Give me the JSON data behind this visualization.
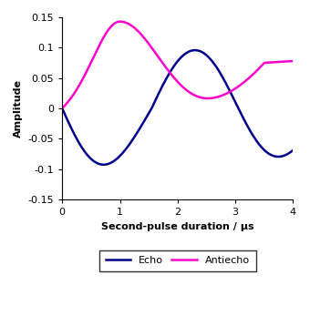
{
  "title": "",
  "xlabel": "Second-pulse duration / μs",
  "ylabel": "Amplitude",
  "xlim": [
    0,
    4
  ],
  "ylim": [
    -0.15,
    0.15
  ],
  "xticks": [
    0,
    1,
    2,
    3,
    4
  ],
  "yticks": [
    -0.15,
    -0.1,
    -0.05,
    0.0,
    0.05,
    0.1,
    0.15
  ],
  "ytick_labels": [
    "-0.15",
    "-0.1",
    "-0.05",
    "0",
    "0.05",
    "0.1",
    "0.15"
  ],
  "echo_color": "#00008B",
  "antiecho_color": "#FF00CC",
  "legend_labels": [
    "Echo",
    "Antiecho"
  ],
  "figsize": [
    3.4,
    3.47
  ],
  "dpi": 100
}
